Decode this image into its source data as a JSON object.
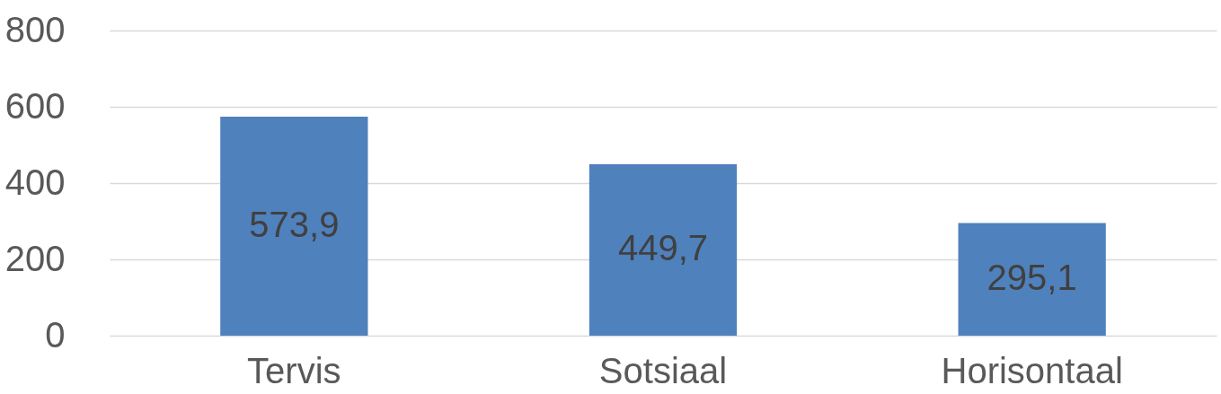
{
  "chart_data": {
    "type": "bar",
    "categories": [
      "Tervis",
      "Sotsiaal",
      "Horisontaal"
    ],
    "values": [
      573.9,
      449.7,
      295.1
    ],
    "value_labels": [
      "573,9",
      "449,7",
      "295,1"
    ],
    "color": "#4f81bd",
    "ylim": [
      0,
      800
    ],
    "yticks": [
      0,
      200,
      400,
      600,
      800
    ],
    "grid": "y"
  }
}
